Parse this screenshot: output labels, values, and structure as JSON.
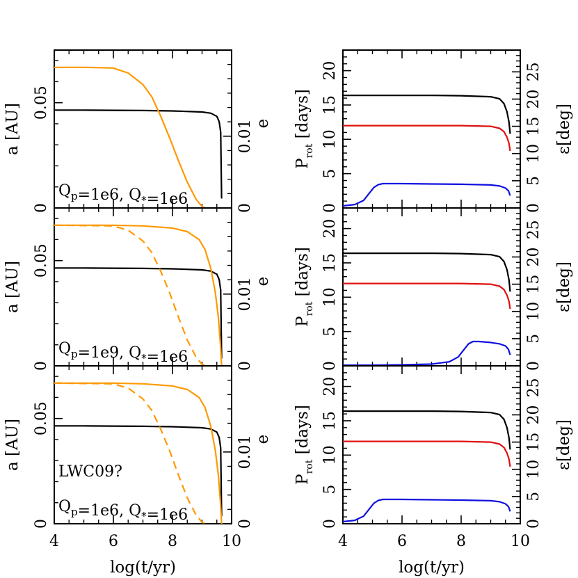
{
  "colors": {
    "black": "#000000",
    "orange": "#ff9900",
    "red": "#e01010",
    "blue": "#1010e0"
  },
  "chart_data": [
    {
      "type": "line",
      "panel": "left-1",
      "xlabel": "log(t/yr)",
      "ylabel_left": "a [AU]",
      "ylabel_right": "e",
      "xlim": [
        4,
        10
      ],
      "ylim_left": [
        0,
        0.075
      ],
      "ylim_right": [
        0,
        0.022
      ],
      "xticklabels": [
        "4",
        "6",
        "8",
        "10"
      ],
      "yticklabels_left": [
        "0",
        "0.05"
      ],
      "yticklabels_right": [
        "0",
        "0.01"
      ],
      "annotation": [
        "Q_p=1e6,  Q_*=1e6"
      ],
      "series": [
        {
          "name": "a",
          "axis": "left",
          "color": "black",
          "style": "solid",
          "x": [
            4,
            5,
            6,
            7,
            8,
            9,
            9.3,
            9.5,
            9.58,
            9.63,
            9.66
          ],
          "y": [
            0.0465,
            0.0465,
            0.0464,
            0.0463,
            0.0461,
            0.0456,
            0.045,
            0.0435,
            0.041,
            0.036,
            0.0045
          ]
        },
        {
          "name": "e",
          "axis": "right",
          "color": "orange",
          "style": "solid",
          "x": [
            4,
            5,
            6,
            6.5,
            7,
            7.3,
            7.6,
            7.9,
            8.2,
            8.5,
            8.8,
            9.0,
            9.1,
            9.7
          ],
          "y": [
            0.0196,
            0.0196,
            0.0195,
            0.0188,
            0.0172,
            0.0155,
            0.0128,
            0.0098,
            0.0066,
            0.0036,
            0.0012,
            0.0002,
            0.0,
            0.0
          ]
        }
      ]
    },
    {
      "type": "line",
      "panel": "left-2",
      "xlabel": "log(t/yr)",
      "ylabel_left": "a [AU]",
      "ylabel_right": "e",
      "xlim": [
        4,
        10
      ],
      "ylim_left": [
        0,
        0.075
      ],
      "ylim_right": [
        0,
        0.022
      ],
      "xticklabels": [
        "4",
        "6",
        "8",
        "10"
      ],
      "yticklabels_left": [
        "0",
        "0.05"
      ],
      "yticklabels_right": [
        "0",
        "0.01"
      ],
      "annotation": [
        "Q_p=1e9,  Q_*=1e6"
      ],
      "series": [
        {
          "name": "a",
          "axis": "left",
          "color": "black",
          "style": "solid",
          "x": [
            4,
            5,
            6,
            7,
            8,
            9,
            9.3,
            9.5,
            9.58,
            9.63,
            9.66
          ],
          "y": [
            0.0465,
            0.0465,
            0.0464,
            0.0463,
            0.0461,
            0.0456,
            0.045,
            0.0435,
            0.041,
            0.036,
            0.0035
          ]
        },
        {
          "name": "e",
          "axis": "right",
          "color": "orange",
          "style": "solid",
          "x": [
            4,
            6,
            7,
            8,
            8.5,
            8.9,
            9.1,
            9.3,
            9.45,
            9.55,
            9.62,
            9.66
          ],
          "y": [
            0.0196,
            0.0196,
            0.0195,
            0.0192,
            0.0187,
            0.0176,
            0.0162,
            0.0135,
            0.0102,
            0.0068,
            0.0032,
            0.0
          ]
        },
        {
          "name": "e-dashed",
          "axis": "right",
          "color": "orange",
          "style": "dashed",
          "x": [
            4,
            6,
            6.5,
            7,
            7.3,
            7.6,
            7.9,
            8.2,
            8.5,
            8.8,
            9.0,
            9.2
          ],
          "y": [
            0.0196,
            0.0195,
            0.0189,
            0.0174,
            0.0158,
            0.0132,
            0.0102,
            0.0068,
            0.0036,
            0.0012,
            0.0002,
            0.0
          ]
        }
      ]
    },
    {
      "type": "line",
      "panel": "left-3",
      "xlabel": "log(t/yr)",
      "ylabel_left": "a [AU]",
      "ylabel_right": "e",
      "xlim": [
        4,
        10
      ],
      "ylim_left": [
        0,
        0.075
      ],
      "ylim_right": [
        0,
        0.022
      ],
      "xticklabels": [
        "4",
        "6",
        "8",
        "10"
      ],
      "yticklabels_left": [
        "0",
        "0.05"
      ],
      "yticklabels_right": [
        "0",
        "0.01"
      ],
      "annotation": [
        "LWC09?",
        "Q_p=1e6,  Q_*=1e6"
      ],
      "series": [
        {
          "name": "a",
          "axis": "left",
          "color": "black",
          "style": "solid",
          "x": [
            4,
            5,
            6,
            7,
            8,
            9,
            9.3,
            9.5,
            9.58,
            9.63,
            9.66
          ],
          "y": [
            0.0465,
            0.0465,
            0.0464,
            0.0463,
            0.0461,
            0.0456,
            0.045,
            0.0435,
            0.041,
            0.036,
            0.0035
          ]
        },
        {
          "name": "e",
          "axis": "right",
          "color": "orange",
          "style": "solid",
          "x": [
            4,
            6,
            7,
            8,
            8.5,
            8.9,
            9.1,
            9.3,
            9.45,
            9.55,
            9.62,
            9.66
          ],
          "y": [
            0.0196,
            0.0196,
            0.0195,
            0.0192,
            0.0187,
            0.0176,
            0.0162,
            0.0135,
            0.0102,
            0.0068,
            0.0032,
            0.0
          ]
        },
        {
          "name": "e-dashed",
          "axis": "right",
          "color": "orange",
          "style": "dashed",
          "x": [
            4,
            6,
            6.5,
            7,
            7.3,
            7.6,
            7.9,
            8.2,
            8.5,
            8.8,
            9.0,
            9.2
          ],
          "y": [
            0.0196,
            0.0195,
            0.0189,
            0.0174,
            0.0158,
            0.0132,
            0.0102,
            0.0068,
            0.0036,
            0.0012,
            0.0002,
            0.0
          ]
        }
      ]
    },
    {
      "type": "line",
      "panel": "right-1",
      "xlabel": "log(t/yr)",
      "ylabel_left": "P_rot [days]",
      "ylabel_right": "ε[deg]",
      "xlim": [
        4,
        10
      ],
      "ylim_left": [
        0,
        23
      ],
      "ylim_right": [
        0,
        29
      ],
      "xticklabels": [
        "4",
        "6",
        "8",
        "10"
      ],
      "yticklabels_left": [
        "0",
        "5",
        "10",
        "15",
        "20"
      ],
      "yticklabels_right": [
        "0",
        "5",
        "10",
        "15",
        "20",
        "25"
      ],
      "series": [
        {
          "name": "black",
          "axis": "left",
          "color": "black",
          "style": "solid",
          "x": [
            4,
            6,
            7,
            8,
            9,
            9.3,
            9.45,
            9.55,
            9.62,
            9.66
          ],
          "y": [
            16.4,
            16.4,
            16.4,
            16.35,
            16.2,
            15.9,
            15.2,
            14.0,
            12.5,
            10.8
          ]
        },
        {
          "name": "red",
          "axis": "left",
          "color": "red",
          "style": "solid",
          "x": [
            4,
            6,
            7,
            8,
            9,
            9.3,
            9.45,
            9.55,
            9.62,
            9.66
          ],
          "y": [
            12.0,
            12.0,
            12.0,
            12.0,
            11.9,
            11.6,
            11.1,
            10.3,
            9.4,
            8.3
          ]
        },
        {
          "name": "blue",
          "axis": "left",
          "color": "blue",
          "style": "solid",
          "x": [
            4,
            4.4,
            4.7,
            4.9,
            5.05,
            5.2,
            5.35,
            6,
            7,
            8,
            9,
            9.3,
            9.5,
            9.6,
            9.66
          ],
          "y": [
            0.3,
            0.5,
            1.1,
            2.2,
            3.0,
            3.4,
            3.55,
            3.55,
            3.5,
            3.45,
            3.35,
            3.2,
            2.9,
            2.5,
            1.8
          ]
        }
      ]
    },
    {
      "type": "line",
      "panel": "right-2",
      "xlabel": "log(t/yr)",
      "ylabel_left": "P_rot [days]",
      "ylabel_right": "ε[deg]",
      "xlim": [
        4,
        10
      ],
      "ylim_left": [
        0,
        23
      ],
      "ylim_right": [
        0,
        29
      ],
      "xticklabels": [
        "4",
        "6",
        "8",
        "10"
      ],
      "yticklabels_left": [
        "0",
        "5",
        "10",
        "15",
        "20"
      ],
      "yticklabels_right": [
        "0",
        "5",
        "10",
        "15",
        "20",
        "25"
      ],
      "series": [
        {
          "name": "black",
          "axis": "left",
          "color": "black",
          "style": "solid",
          "x": [
            4,
            6,
            7,
            8,
            9,
            9.3,
            9.45,
            9.55,
            9.62,
            9.66
          ],
          "y": [
            16.4,
            16.4,
            16.4,
            16.35,
            16.2,
            15.9,
            15.2,
            14.0,
            12.5,
            10.8
          ]
        },
        {
          "name": "red",
          "axis": "left",
          "color": "red",
          "style": "solid",
          "x": [
            4,
            6,
            7,
            8,
            9,
            9.3,
            9.45,
            9.55,
            9.62,
            9.66
          ],
          "y": [
            12.0,
            12.0,
            12.0,
            12.0,
            11.9,
            11.6,
            11.1,
            10.3,
            9.4,
            8.3
          ]
        },
        {
          "name": "blue",
          "axis": "left",
          "color": "blue",
          "style": "solid",
          "x": [
            4,
            5,
            6,
            7,
            7.6,
            7.9,
            8.1,
            8.25,
            8.4,
            8.6,
            9,
            9.3,
            9.5,
            9.6,
            9.66
          ],
          "y": [
            0.1,
            0.1,
            0.15,
            0.25,
            0.6,
            1.3,
            2.4,
            3.2,
            3.55,
            3.55,
            3.4,
            3.2,
            2.9,
            2.4,
            1.6
          ]
        }
      ]
    },
    {
      "type": "line",
      "panel": "right-3",
      "xlabel": "log(t/yr)",
      "ylabel_left": "P_rot [days]",
      "ylabel_right": "ε[deg]",
      "xlim": [
        4,
        10
      ],
      "ylim_left": [
        0,
        23
      ],
      "ylim_right": [
        0,
        29
      ],
      "xticklabels": [
        "4",
        "6",
        "8",
        "10"
      ],
      "yticklabels_left": [
        "0",
        "5",
        "10",
        "15",
        "20"
      ],
      "yticklabels_right": [
        "0",
        "5",
        "10",
        "15",
        "20",
        "25"
      ],
      "series": [
        {
          "name": "black",
          "axis": "left",
          "color": "black",
          "style": "solid",
          "x": [
            4,
            6,
            7,
            8,
            9,
            9.3,
            9.45,
            9.55,
            9.62,
            9.66
          ],
          "y": [
            16.4,
            16.4,
            16.4,
            16.35,
            16.2,
            15.9,
            15.2,
            14.0,
            12.5,
            10.8
          ]
        },
        {
          "name": "red",
          "axis": "left",
          "color": "red",
          "style": "solid",
          "x": [
            4,
            6,
            7,
            8,
            9,
            9.3,
            9.45,
            9.55,
            9.62,
            9.66
          ],
          "y": [
            12.0,
            12.0,
            12.0,
            12.0,
            11.9,
            11.6,
            11.1,
            10.3,
            9.4,
            8.3
          ]
        },
        {
          "name": "blue",
          "axis": "left",
          "color": "blue",
          "style": "solid",
          "x": [
            4,
            4.4,
            4.7,
            4.9,
            5.05,
            5.2,
            5.35,
            6,
            7,
            8,
            9,
            9.3,
            9.5,
            9.6,
            9.66
          ],
          "y": [
            0.3,
            0.5,
            1.1,
            2.2,
            3.0,
            3.4,
            3.55,
            3.55,
            3.5,
            3.45,
            3.35,
            3.2,
            2.9,
            2.5,
            1.8
          ]
        }
      ]
    }
  ]
}
